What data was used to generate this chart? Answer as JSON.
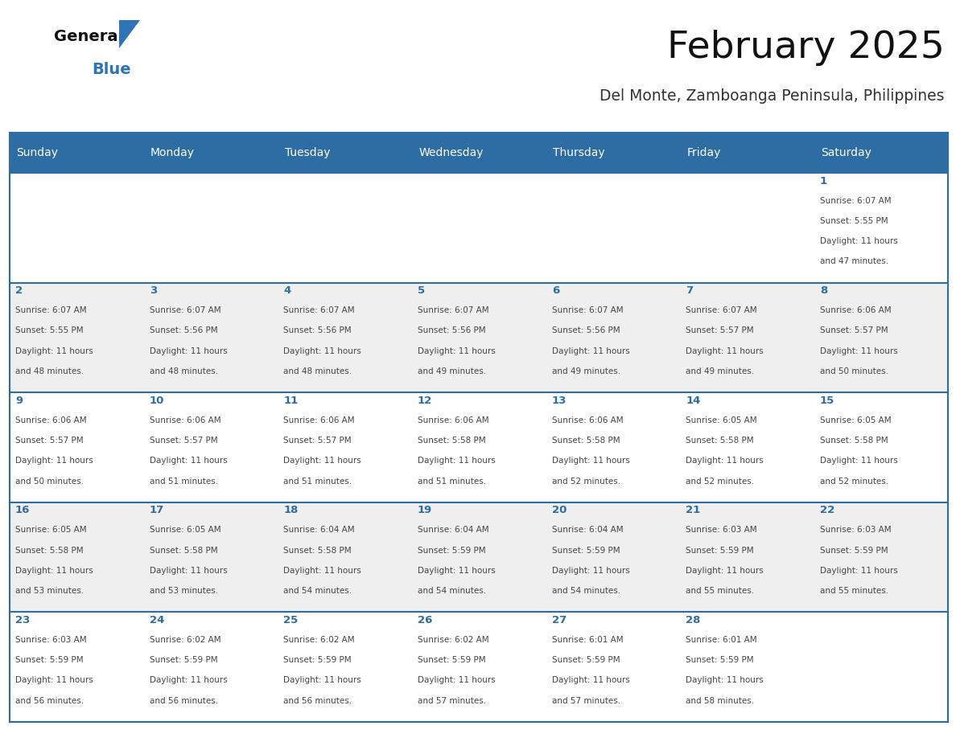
{
  "title": "February 2025",
  "subtitle": "Del Monte, Zamboanga Peninsula, Philippines",
  "days_of_week": [
    "Sunday",
    "Monday",
    "Tuesday",
    "Wednesday",
    "Thursday",
    "Friday",
    "Saturday"
  ],
  "header_bg": "#2E6DA4",
  "header_text": "#FFFFFF",
  "row_bg_colors": [
    "#FFFFFF",
    "#EFEFEF",
    "#FFFFFF",
    "#EFEFEF",
    "#FFFFFF"
  ],
  "border_color": "#2E6DA4",
  "day_number_color": "#2E6DA4",
  "text_color": "#444444",
  "title_color": "#111111",
  "subtitle_color": "#333333",
  "logo_general_color": "#111111",
  "logo_blue_color": "#2E75B6",
  "calendar_data": [
    {
      "day": 1,
      "week": 0,
      "dow": 6,
      "sunrise": "6:07 AM",
      "sunset": "5:55 PM",
      "daylight_h": "11 hours",
      "daylight_m": "47 minutes."
    },
    {
      "day": 2,
      "week": 1,
      "dow": 0,
      "sunrise": "6:07 AM",
      "sunset": "5:55 PM",
      "daylight_h": "11 hours",
      "daylight_m": "48 minutes."
    },
    {
      "day": 3,
      "week": 1,
      "dow": 1,
      "sunrise": "6:07 AM",
      "sunset": "5:56 PM",
      "daylight_h": "11 hours",
      "daylight_m": "48 minutes."
    },
    {
      "day": 4,
      "week": 1,
      "dow": 2,
      "sunrise": "6:07 AM",
      "sunset": "5:56 PM",
      "daylight_h": "11 hours",
      "daylight_m": "48 minutes."
    },
    {
      "day": 5,
      "week": 1,
      "dow": 3,
      "sunrise": "6:07 AM",
      "sunset": "5:56 PM",
      "daylight_h": "11 hours",
      "daylight_m": "49 minutes."
    },
    {
      "day": 6,
      "week": 1,
      "dow": 4,
      "sunrise": "6:07 AM",
      "sunset": "5:56 PM",
      "daylight_h": "11 hours",
      "daylight_m": "49 minutes."
    },
    {
      "day": 7,
      "week": 1,
      "dow": 5,
      "sunrise": "6:07 AM",
      "sunset": "5:57 PM",
      "daylight_h": "11 hours",
      "daylight_m": "49 minutes."
    },
    {
      "day": 8,
      "week": 1,
      "dow": 6,
      "sunrise": "6:06 AM",
      "sunset": "5:57 PM",
      "daylight_h": "11 hours",
      "daylight_m": "50 minutes."
    },
    {
      "day": 9,
      "week": 2,
      "dow": 0,
      "sunrise": "6:06 AM",
      "sunset": "5:57 PM",
      "daylight_h": "11 hours",
      "daylight_m": "50 minutes."
    },
    {
      "day": 10,
      "week": 2,
      "dow": 1,
      "sunrise": "6:06 AM",
      "sunset": "5:57 PM",
      "daylight_h": "11 hours",
      "daylight_m": "51 minutes."
    },
    {
      "day": 11,
      "week": 2,
      "dow": 2,
      "sunrise": "6:06 AM",
      "sunset": "5:57 PM",
      "daylight_h": "11 hours",
      "daylight_m": "51 minutes."
    },
    {
      "day": 12,
      "week": 2,
      "dow": 3,
      "sunrise": "6:06 AM",
      "sunset": "5:58 PM",
      "daylight_h": "11 hours",
      "daylight_m": "51 minutes."
    },
    {
      "day": 13,
      "week": 2,
      "dow": 4,
      "sunrise": "6:06 AM",
      "sunset": "5:58 PM",
      "daylight_h": "11 hours",
      "daylight_m": "52 minutes."
    },
    {
      "day": 14,
      "week": 2,
      "dow": 5,
      "sunrise": "6:05 AM",
      "sunset": "5:58 PM",
      "daylight_h": "11 hours",
      "daylight_m": "52 minutes."
    },
    {
      "day": 15,
      "week": 2,
      "dow": 6,
      "sunrise": "6:05 AM",
      "sunset": "5:58 PM",
      "daylight_h": "11 hours",
      "daylight_m": "52 minutes."
    },
    {
      "day": 16,
      "week": 3,
      "dow": 0,
      "sunrise": "6:05 AM",
      "sunset": "5:58 PM",
      "daylight_h": "11 hours",
      "daylight_m": "53 minutes."
    },
    {
      "day": 17,
      "week": 3,
      "dow": 1,
      "sunrise": "6:05 AM",
      "sunset": "5:58 PM",
      "daylight_h": "11 hours",
      "daylight_m": "53 minutes."
    },
    {
      "day": 18,
      "week": 3,
      "dow": 2,
      "sunrise": "6:04 AM",
      "sunset": "5:58 PM",
      "daylight_h": "11 hours",
      "daylight_m": "54 minutes."
    },
    {
      "day": 19,
      "week": 3,
      "dow": 3,
      "sunrise": "6:04 AM",
      "sunset": "5:59 PM",
      "daylight_h": "11 hours",
      "daylight_m": "54 minutes."
    },
    {
      "day": 20,
      "week": 3,
      "dow": 4,
      "sunrise": "6:04 AM",
      "sunset": "5:59 PM",
      "daylight_h": "11 hours",
      "daylight_m": "54 minutes."
    },
    {
      "day": 21,
      "week": 3,
      "dow": 5,
      "sunrise": "6:03 AM",
      "sunset": "5:59 PM",
      "daylight_h": "11 hours",
      "daylight_m": "55 minutes."
    },
    {
      "day": 22,
      "week": 3,
      "dow": 6,
      "sunrise": "6:03 AM",
      "sunset": "5:59 PM",
      "daylight_h": "11 hours",
      "daylight_m": "55 minutes."
    },
    {
      "day": 23,
      "week": 4,
      "dow": 0,
      "sunrise": "6:03 AM",
      "sunset": "5:59 PM",
      "daylight_h": "11 hours",
      "daylight_m": "56 minutes."
    },
    {
      "day": 24,
      "week": 4,
      "dow": 1,
      "sunrise": "6:02 AM",
      "sunset": "5:59 PM",
      "daylight_h": "11 hours",
      "daylight_m": "56 minutes."
    },
    {
      "day": 25,
      "week": 4,
      "dow": 2,
      "sunrise": "6:02 AM",
      "sunset": "5:59 PM",
      "daylight_h": "11 hours",
      "daylight_m": "56 minutes."
    },
    {
      "day": 26,
      "week": 4,
      "dow": 3,
      "sunrise": "6:02 AM",
      "sunset": "5:59 PM",
      "daylight_h": "11 hours",
      "daylight_m": "57 minutes."
    },
    {
      "day": 27,
      "week": 4,
      "dow": 4,
      "sunrise": "6:01 AM",
      "sunset": "5:59 PM",
      "daylight_h": "11 hours",
      "daylight_m": "57 minutes."
    },
    {
      "day": 28,
      "week": 4,
      "dow": 5,
      "sunrise": "6:01 AM",
      "sunset": "5:59 PM",
      "daylight_h": "11 hours",
      "daylight_m": "58 minutes."
    }
  ]
}
